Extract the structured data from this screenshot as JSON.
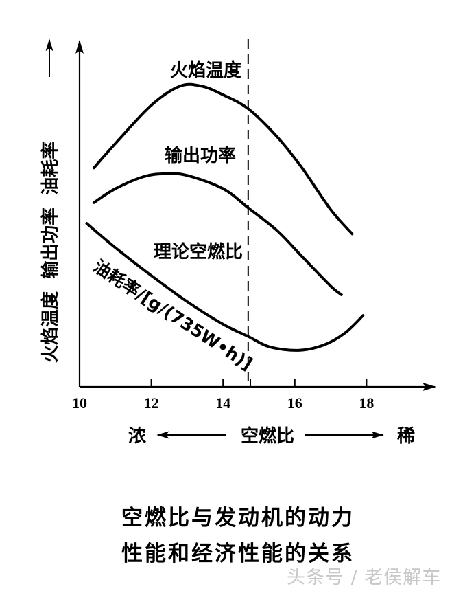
{
  "chart_data": {
    "type": "line",
    "title": "空燃比与发动机的动力性能和经济性能的关系",
    "xlabel": "空燃比",
    "xlabel_left": "浓",
    "xlabel_right": "稀",
    "ylabel": "火焰温度 输出功率 油耗率",
    "xlim": [
      10,
      19.5
    ],
    "x_ticks": [
      10,
      12,
      14,
      16,
      18
    ],
    "ylim": [
      0,
      100
    ],
    "y_units": "relative (no numeric ticks shown)",
    "grid": false,
    "legend": "inline curve labels",
    "annotations": [
      {
        "text": "理论空燃比",
        "x": 14.7,
        "style": "dashed vertical line"
      }
    ],
    "series": [
      {
        "name": "火焰温度",
        "x": [
          10.4,
          11.0,
          12.0,
          12.8,
          13.4,
          14.0,
          14.7,
          15.5,
          16.2,
          17.0,
          17.6
        ],
        "y": [
          63,
          70,
          81,
          86.5,
          86.5,
          84,
          80,
          72,
          63,
          51,
          44
        ]
      },
      {
        "name": "输出功率",
        "x": [
          10.4,
          11.0,
          11.8,
          12.4,
          13.0,
          14.0,
          14.7,
          15.5,
          16.2,
          17.0,
          17.3
        ],
        "y": [
          53,
          57,
          60.5,
          61.3,
          60.8,
          57,
          51.5,
          45,
          37.5,
          29,
          26.5
        ]
      },
      {
        "name": "油耗率/[g/(735W·h)]",
        "x": [
          10.2,
          11.0,
          12.0,
          13.0,
          14.0,
          14.7,
          15.3,
          16.1,
          16.8,
          17.4,
          17.9
        ],
        "y": [
          47,
          40,
          32,
          24.5,
          18,
          14.5,
          11.5,
          10.5,
          12,
          15.5,
          20.5
        ]
      }
    ]
  },
  "labels": {
    "flame": "火焰温度",
    "power": "输出功率",
    "stoich": "理论空燃比",
    "fuel": "油耗率/[g/(735W•h)]",
    "yaxis": "火焰温度  输出功率  油耗率",
    "x_rich": "浓",
    "x_center": "空燃比",
    "x_lean": "稀",
    "ticks": [
      "10",
      "12",
      "14",
      "16",
      "18"
    ]
  },
  "caption": {
    "line1": "空燃比与发动机的动力",
    "line2": "性能和经济性能的关系"
  },
  "watermark": "头条号 / 老侯解车"
}
